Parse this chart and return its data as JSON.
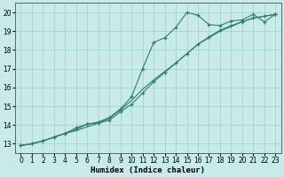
{
  "xlabel": "Humidex (Indice chaleur)",
  "x": [
    0,
    1,
    2,
    3,
    4,
    5,
    6,
    7,
    8,
    9,
    10,
    11,
    12,
    13,
    14,
    15,
    16,
    17,
    18,
    19,
    20,
    21,
    22,
    23
  ],
  "line1_marked": [
    12.9,
    13.0,
    13.15,
    13.35,
    13.55,
    13.85,
    14.05,
    14.15,
    14.4,
    14.85,
    15.5,
    17.0,
    18.4,
    18.65,
    19.2,
    20.0,
    19.85,
    19.35,
    19.3,
    19.55,
    19.6,
    19.9,
    19.5,
    19.9
  ],
  "line2_plain": [
    12.9,
    13.0,
    13.15,
    13.35,
    13.55,
    13.7,
    13.9,
    14.1,
    14.35,
    14.8,
    15.3,
    15.9,
    16.4,
    16.85,
    17.3,
    17.8,
    18.3,
    18.65,
    19.0,
    19.25,
    19.5,
    19.7,
    19.8,
    19.9
  ],
  "line3_marked": [
    12.9,
    13.0,
    13.15,
    13.35,
    13.55,
    13.75,
    14.05,
    14.1,
    14.25,
    14.7,
    15.1,
    15.7,
    16.3,
    16.8,
    17.3,
    17.8,
    18.3,
    18.7,
    19.05,
    19.3,
    19.5,
    19.7,
    19.8,
    19.9
  ],
  "line_color": "#2e7d6e",
  "bg_color": "#c8eaea",
  "grid_color": "#9ecece",
  "ylim": [
    12.5,
    20.5
  ],
  "xlim": [
    -0.5,
    23.5
  ],
  "yticks": [
    13,
    14,
    15,
    16,
    17,
    18,
    19,
    20
  ],
  "xticks": [
    0,
    1,
    2,
    3,
    4,
    5,
    6,
    7,
    8,
    9,
    10,
    11,
    12,
    13,
    14,
    15,
    16,
    17,
    18,
    19,
    20,
    21,
    22,
    23
  ]
}
